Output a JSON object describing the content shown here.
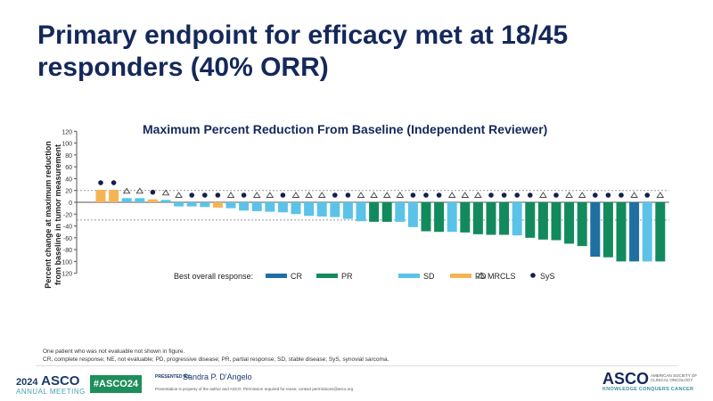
{
  "slide": {
    "title": "Primary endpoint for efficacy met at 18/45 responders (40% ORR)",
    "footnote_1": "One patient who was not evaluable not shown in figure.",
    "footnote_2": "CR, complete response; NE, not evaluable; PD, progressive disease; PR, partial response; SD, stable disease; SyS, synovial sarcoma."
  },
  "footer": {
    "year": "2024",
    "org": "ASCO",
    "meeting": "ANNUAL MEETING",
    "hashtag": "#ASCO24",
    "presented_by": "PRESENTED BY:",
    "presenter": "Sandra P. D'Angelo",
    "permission": "Presentation is property of the author and ASCO. Permission required for reuse; contact permissions@asco.org",
    "logo": "ASCO",
    "logo_sub": "AMERICAN SOCIETY OF CLINICAL ONCOLOGY",
    "tagline": "KNOWLEDGE CONQUERS CANCER"
  },
  "chart_data": {
    "type": "bar",
    "title": "Maximum Percent Reduction From Baseline (Independent Reviewer)",
    "ylabel": "Percent change at maximum reduction from baseline in tumor measurement",
    "ylim": [
      -120,
      120
    ],
    "yticks": [
      120,
      100,
      80,
      60,
      40,
      20,
      0,
      -20,
      -40,
      -60,
      -80,
      -100,
      -120
    ],
    "reference_lines": [
      20,
      -30
    ],
    "legend_title": "Best overall response:",
    "legend": [
      {
        "key": "CR",
        "label": "CR",
        "color": "#1f6fa3"
      },
      {
        "key": "PR",
        "label": "PR",
        "color": "#138a5e"
      },
      {
        "key": "SD",
        "label": "SD",
        "color": "#5bc3e8"
      },
      {
        "key": "PD",
        "label": "PD",
        "color": "#f5b454"
      },
      {
        "key": "MRCLS",
        "label": "MRCLS",
        "marker": "triangle"
      },
      {
        "key": "SyS",
        "label": "SyS",
        "marker": "circle"
      }
    ],
    "values": [
      21,
      21,
      7,
      7,
      5,
      4,
      -7,
      -7,
      -8,
      -9,
      -10,
      -14,
      -15,
      -16,
      -17,
      -20,
      -23,
      -24,
      -25,
      -28,
      -32,
      -33,
      -33,
      -33,
      -42,
      -49,
      -50,
      -50,
      -51,
      -54,
      -55,
      -55,
      -56,
      -60,
      -63,
      -64,
      -70,
      -74,
      -92,
      -93,
      -100,
      -100,
      -100,
      -100
    ],
    "response": [
      "PD",
      "PD",
      "SD",
      "SD",
      "PD",
      "SD",
      "SD",
      "SD",
      "SD",
      "PD",
      "SD",
      "SD",
      "SD",
      "SD",
      "SD",
      "SD",
      "SD",
      "SD",
      "SD",
      "SD",
      "SD",
      "PR",
      "PR",
      "SD",
      "SD",
      "PR",
      "PR",
      "SD",
      "PR",
      "PR",
      "PR",
      "PR",
      "SD",
      "PR",
      "PR",
      "PR",
      "PR",
      "PR",
      "CR",
      "PR",
      "PR",
      "CR",
      "SD",
      "PR"
    ],
    "histology": [
      "SyS",
      "SyS",
      "MRCLS",
      "MRCLS",
      "SyS",
      "MRCLS",
      "MRCLS",
      "SyS",
      "SyS",
      "SyS",
      "MRCLS",
      "SyS",
      "MRCLS",
      "MRCLS",
      "SyS",
      "MRCLS",
      "MRCLS",
      "MRCLS",
      "SyS",
      "SyS",
      "MRCLS",
      "MRCLS",
      "MRCLS",
      "MRCLS",
      "SyS",
      "SyS",
      "SyS",
      "MRCLS",
      "MRCLS",
      "MRCLS",
      "SyS",
      "SyS",
      "SyS",
      "SyS",
      "MRCLS",
      "SyS",
      "MRCLS",
      "MRCLS",
      "SyS",
      "SyS",
      "SyS",
      "MRCLS",
      "SyS",
      "MRCLS"
    ]
  }
}
